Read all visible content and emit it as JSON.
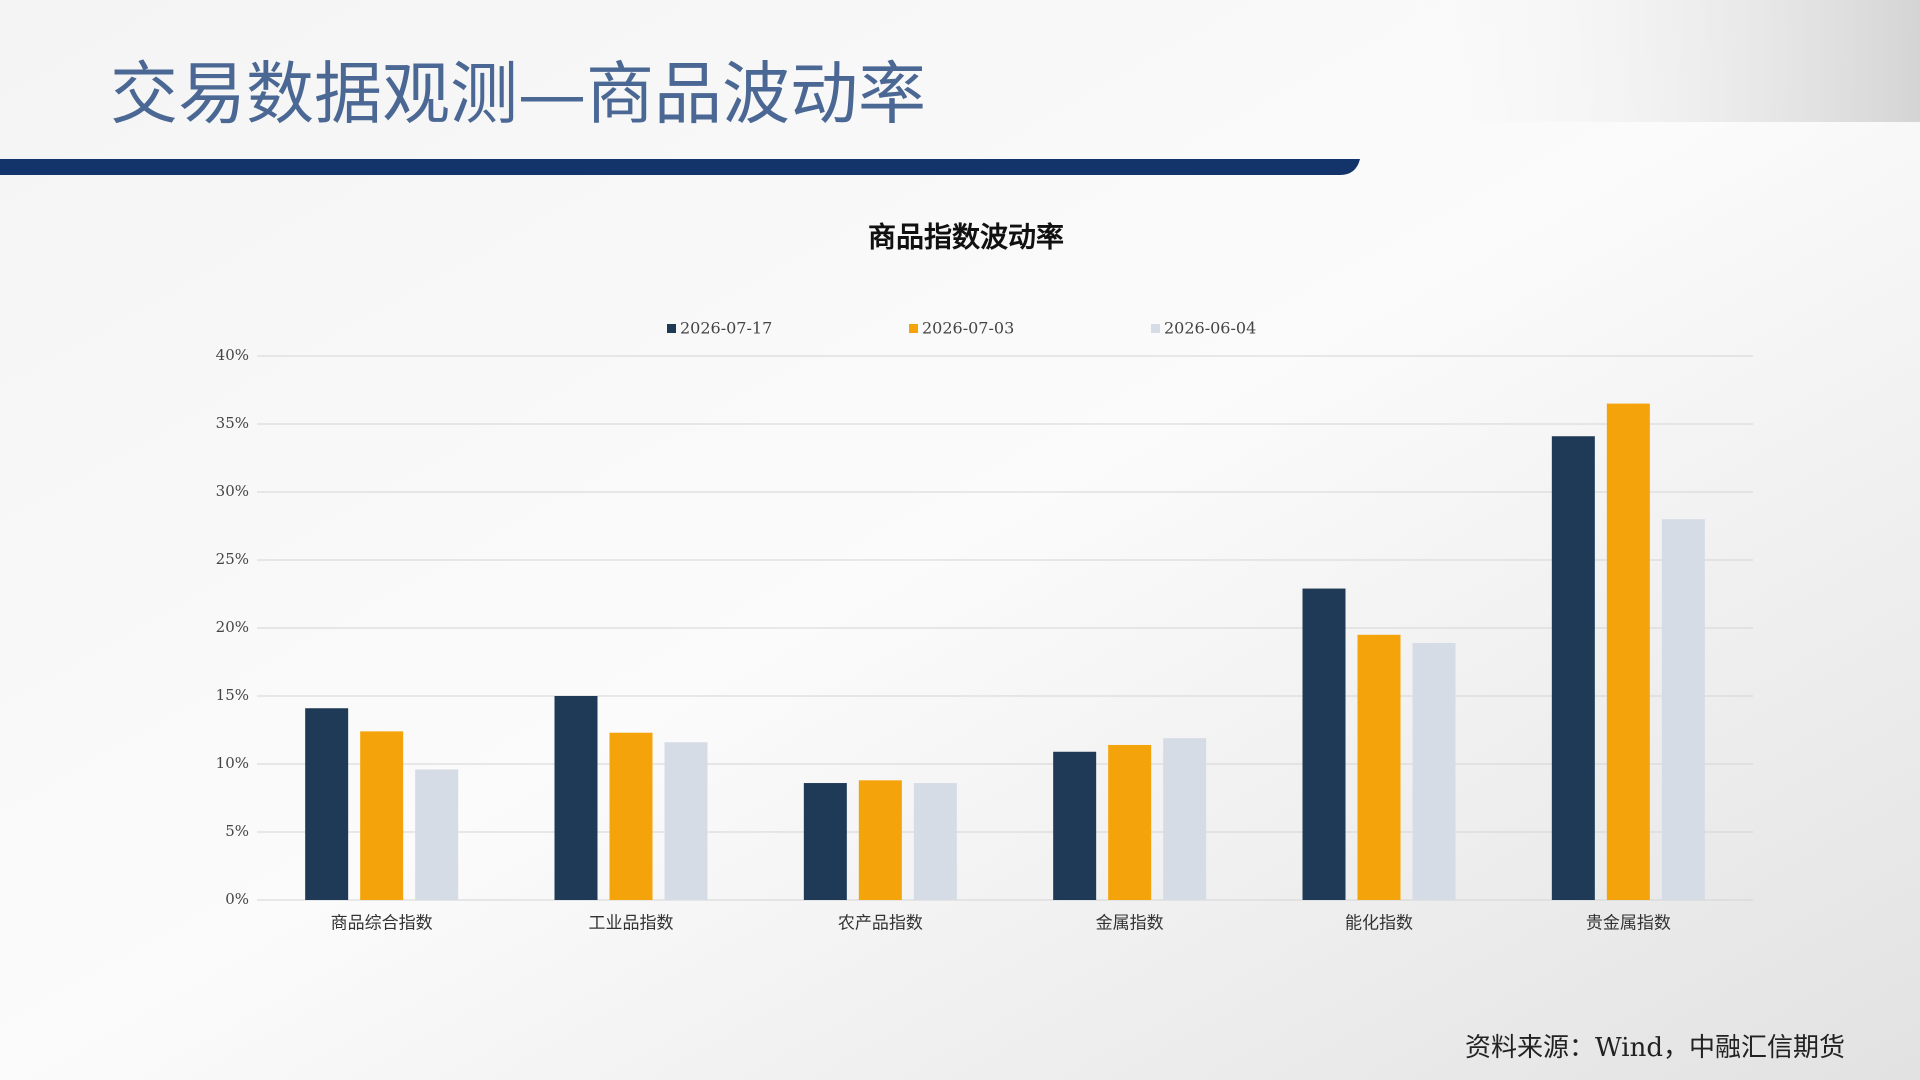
{
  "title": "交易数据观测—商品波动率",
  "source": "资料来源：Wind，中融汇信期货",
  "chart_data": {
    "type": "bar",
    "title": "商品指数波动率",
    "categories": [
      "商品综合指数",
      "工业品指数",
      "农产品指数",
      "金属指数",
      "能化指数",
      "贵金属指数"
    ],
    "series": [
      {
        "name": "2026-07-17",
        "color": "#1f3a56",
        "values": [
          14.1,
          15.0,
          8.6,
          10.9,
          22.9,
          34.1
        ]
      },
      {
        "name": "2026-07-03",
        "color": "#f5a30a",
        "values": [
          12.4,
          12.3,
          8.8,
          11.4,
          19.5,
          36.5
        ]
      },
      {
        "name": "2026-06-04",
        "color": "#d6dce5",
        "values": [
          9.6,
          11.6,
          8.6,
          11.9,
          18.9,
          28.0
        ]
      }
    ],
    "ylim": [
      0,
      40
    ],
    "yticks": [
      {
        "value": 0,
        "label": "0%"
      },
      {
        "value": 5,
        "label": "5%"
      },
      {
        "value": 10,
        "label": "10%"
      },
      {
        "value": 15,
        "label": "15%"
      },
      {
        "value": 20,
        "label": "20%"
      },
      {
        "value": 25,
        "label": "25%"
      },
      {
        "value": 30,
        "label": "30%"
      },
      {
        "value": 35,
        "label": "35%"
      },
      {
        "value": 40,
        "label": "40%"
      }
    ],
    "grid": true,
    "legend": "top"
  }
}
